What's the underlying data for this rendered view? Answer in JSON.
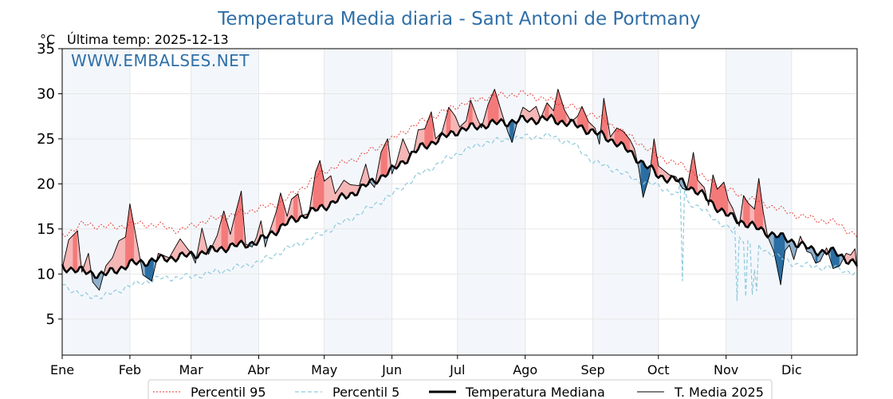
{
  "chart_data": {
    "type": "line",
    "title": "Temperatura Media diaria - Sant Antoni de Portmany",
    "unit_label": "°C",
    "last_temp_label": "Última temp: 2025-12-13",
    "watermark": "WWW.EMBALSES.NET",
    "x_range_days": [
      1,
      365
    ],
    "ylim": [
      1,
      35
    ],
    "yticks": [
      5,
      10,
      15,
      20,
      25,
      30,
      35
    ],
    "months": [
      "Ene",
      "Feb",
      "Mar",
      "Abr",
      "May",
      "Jun",
      "Jul",
      "Ago",
      "Sep",
      "Oct",
      "Nov",
      "Dic"
    ],
    "month_start_days": [
      1,
      32,
      60,
      91,
      121,
      152,
      182,
      213,
      244,
      274,
      305,
      335
    ],
    "shaded_months": [
      "Ene",
      "Mar",
      "May",
      "Jul",
      "Sep",
      "Nov"
    ],
    "grid": true,
    "legend_position": "bottom",
    "colors": {
      "above_strong": "#f47a7a",
      "above_light": "#f5b6b6",
      "below_strong": "#2a6ea3",
      "below_light": "#8fb0cc",
      "p95": "#e8312b",
      "p5": "#8fc9dc",
      "median": "#000000",
      "current": "#000000",
      "title": "#2f6fa8",
      "month_shade": "#f3f7fb",
      "grid": "#e6e6e6"
    },
    "series": [
      {
        "name": "Percentil 95",
        "key": "p95",
        "points": [
          [
            1,
            14.2
          ],
          [
            10,
            15.5
          ],
          [
            25,
            15.2
          ],
          [
            35,
            15.6
          ],
          [
            45,
            15.4
          ],
          [
            55,
            14.8
          ],
          [
            65,
            15.8
          ],
          [
            80,
            16.6
          ],
          [
            90,
            17.2
          ],
          [
            100,
            17.8
          ],
          [
            110,
            19.4
          ],
          [
            121,
            21.4
          ],
          [
            135,
            22.8
          ],
          [
            150,
            24.6
          ],
          [
            160,
            26.2
          ],
          [
            170,
            27.4
          ],
          [
            182,
            28.7
          ],
          [
            195,
            29.6
          ],
          [
            205,
            29.9
          ],
          [
            213,
            30.0
          ],
          [
            225,
            29.2
          ],
          [
            235,
            28.5
          ],
          [
            244,
            27.7
          ],
          [
            255,
            26.2
          ],
          [
            265,
            24.6
          ],
          [
            274,
            23.0
          ],
          [
            285,
            22.0
          ],
          [
            295,
            20.6
          ],
          [
            305,
            19.4
          ],
          [
            315,
            18.4
          ],
          [
            325,
            17.6
          ],
          [
            335,
            16.7
          ],
          [
            345,
            16.1
          ],
          [
            355,
            15.7
          ],
          [
            365,
            14.2
          ]
        ],
        "noise": 0.45
      },
      {
        "name": "Percentil 5",
        "key": "p5",
        "points": [
          [
            1,
            8.9
          ],
          [
            10,
            7.6
          ],
          [
            20,
            7.5
          ],
          [
            32,
            8.7
          ],
          [
            45,
            9.5
          ],
          [
            60,
            9.7
          ],
          [
            75,
            10.4
          ],
          [
            91,
            11.3
          ],
          [
            105,
            12.9
          ],
          [
            121,
            14.6
          ],
          [
            135,
            16.4
          ],
          [
            152,
            18.8
          ],
          [
            165,
            21.1
          ],
          [
            182,
            23.4
          ],
          [
            195,
            24.6
          ],
          [
            213,
            25.2
          ],
          [
            225,
            25.3
          ],
          [
            235,
            24.4
          ],
          [
            244,
            22.5
          ],
          [
            255,
            21.5
          ],
          [
            265,
            20.3
          ],
          [
            274,
            19.8
          ],
          [
            285,
            18.4
          ],
          [
            295,
            17.0
          ],
          [
            305,
            15.2
          ],
          [
            315,
            13.5
          ],
          [
            325,
            12.4
          ],
          [
            335,
            11.2
          ],
          [
            345,
            10.8
          ],
          [
            355,
            10.7
          ],
          [
            365,
            10.0
          ]
        ],
        "noise": 0.4
      },
      {
        "name": "Temperatura Mediana",
        "key": "median",
        "points": [
          [
            1,
            10.8
          ],
          [
            10,
            10.3
          ],
          [
            20,
            9.9
          ],
          [
            32,
            11.1
          ],
          [
            45,
            11.6
          ],
          [
            60,
            12.1
          ],
          [
            75,
            12.9
          ],
          [
            91,
            13.6
          ],
          [
            105,
            15.8
          ],
          [
            121,
            17.5
          ],
          [
            135,
            19.1
          ],
          [
            152,
            21.5
          ],
          [
            165,
            24.0
          ],
          [
            182,
            25.9
          ],
          [
            195,
            26.6
          ],
          [
            213,
            27.1
          ],
          [
            225,
            27.2
          ],
          [
            235,
            26.6
          ],
          [
            244,
            25.8
          ],
          [
            255,
            24.6
          ],
          [
            265,
            22.7
          ],
          [
            274,
            20.9
          ],
          [
            285,
            20.2
          ],
          [
            295,
            18.6
          ],
          [
            305,
            16.6
          ],
          [
            315,
            15.5
          ],
          [
            325,
            14.5
          ],
          [
            335,
            13.7
          ],
          [
            345,
            12.6
          ],
          [
            355,
            12.4
          ],
          [
            365,
            11.0
          ]
        ],
        "noise": 0.55
      },
      {
        "name": "T. Media 2025",
        "key": "current",
        "points": [
          [
            1,
            10.6
          ],
          [
            4,
            13.8
          ],
          [
            8,
            14.8
          ],
          [
            10,
            10.2
          ],
          [
            13,
            12.3
          ],
          [
            15,
            9.1
          ],
          [
            18,
            8.2
          ],
          [
            21,
            10.9
          ],
          [
            24,
            11.8
          ],
          [
            27,
            13.7
          ],
          [
            30,
            14.1
          ],
          [
            32,
            17.8
          ],
          [
            35,
            13.9
          ],
          [
            38,
            9.9
          ],
          [
            42,
            9.2
          ],
          [
            45,
            12.3
          ],
          [
            50,
            11.8
          ],
          [
            55,
            13.9
          ],
          [
            60,
            12.3
          ],
          [
            62,
            11.2
          ],
          [
            65,
            15.1
          ],
          [
            68,
            12.2
          ],
          [
            72,
            14.3
          ],
          [
            75,
            17.0
          ],
          [
            78,
            14.4
          ],
          [
            80,
            16.4
          ],
          [
            83,
            19.2
          ],
          [
            85,
            13.3
          ],
          [
            88,
            13.0
          ],
          [
            90,
            14.1
          ],
          [
            92,
            15.9
          ],
          [
            94,
            13.0
          ],
          [
            96,
            14.7
          ],
          [
            99,
            16.9
          ],
          [
            101,
            19.0
          ],
          [
            104,
            16.4
          ],
          [
            106,
            18.3
          ],
          [
            109,
            18.9
          ],
          [
            111,
            16.5
          ],
          [
            114,
            16.7
          ],
          [
            117,
            21.3
          ],
          [
            119,
            22.6
          ],
          [
            121,
            20.3
          ],
          [
            124,
            20.9
          ],
          [
            126,
            18.9
          ],
          [
            130,
            20.4
          ],
          [
            133,
            19.9
          ],
          [
            137,
            19.8
          ],
          [
            140,
            22.2
          ],
          [
            142,
            20.2
          ],
          [
            144,
            19.6
          ],
          [
            147,
            23.5
          ],
          [
            150,
            25.0
          ],
          [
            152,
            21.1
          ],
          [
            154,
            22.3
          ],
          [
            157,
            25.0
          ],
          [
            160,
            23.3
          ],
          [
            162,
            23.6
          ],
          [
            164,
            26.0
          ],
          [
            167,
            26.1
          ],
          [
            170,
            28.0
          ],
          [
            172,
            25.0
          ],
          [
            175,
            25.8
          ],
          [
            178,
            28.5
          ],
          [
            181,
            27.5
          ],
          [
            183,
            26.3
          ],
          [
            186,
            27.0
          ],
          [
            188,
            29.3
          ],
          [
            191,
            27.3
          ],
          [
            193,
            26.2
          ],
          [
            196,
            28.8
          ],
          [
            199,
            30.5
          ],
          [
            202,
            28.1
          ],
          [
            205,
            25.8
          ],
          [
            207,
            24.6
          ],
          [
            209,
            26.5
          ],
          [
            212,
            28.5
          ],
          [
            215,
            28.0
          ],
          [
            218,
            28.6
          ],
          [
            220,
            27.2
          ],
          [
            223,
            29.0
          ],
          [
            226,
            28.1
          ],
          [
            228,
            30.5
          ],
          [
            231,
            28.2
          ],
          [
            234,
            26.9
          ],
          [
            237,
            27.5
          ],
          [
            239,
            28.6
          ],
          [
            242,
            26.9
          ],
          [
            245,
            26.2
          ],
          [
            247,
            24.4
          ],
          [
            249,
            29.5
          ],
          [
            252,
            25.2
          ],
          [
            255,
            26.2
          ],
          [
            258,
            25.8
          ],
          [
            261,
            24.9
          ],
          [
            263,
            23.9
          ],
          [
            265,
            21.7
          ],
          [
            267,
            18.5
          ],
          [
            270,
            21.0
          ],
          [
            272,
            25.0
          ],
          [
            274,
            22.0
          ],
          [
            276,
            21.6
          ],
          [
            279,
            21.0
          ],
          [
            282,
            20.8
          ],
          [
            285,
            19.5
          ],
          [
            287,
            19.3
          ],
          [
            290,
            23.5
          ],
          [
            292,
            20.4
          ],
          [
            295,
            19.6
          ],
          [
            297,
            17.6
          ],
          [
            299,
            21.0
          ],
          [
            301,
            19.4
          ],
          [
            304,
            20.2
          ],
          [
            306,
            18.2
          ],
          [
            308,
            17.3
          ],
          [
            311,
            15.3
          ],
          [
            313,
            18.7
          ],
          [
            315,
            17.9
          ],
          [
            318,
            17.2
          ],
          [
            320,
            20.6
          ],
          [
            322,
            16.9
          ],
          [
            324,
            14.2
          ],
          [
            327,
            12.4
          ],
          [
            330,
            8.8
          ],
          [
            332,
            12.6
          ],
          [
            334,
            13.2
          ],
          [
            336,
            11.6
          ],
          [
            339,
            14.2
          ],
          [
            342,
            12.5
          ],
          [
            344,
            12.3
          ],
          [
            346,
            11.2
          ],
          [
            348,
            11.4
          ],
          [
            351,
            12.9
          ],
          [
            354,
            10.6
          ],
          [
            357,
            10.9
          ],
          [
            360,
            12.3
          ],
          [
            362,
            12.1
          ],
          [
            364,
            12.8
          ],
          [
            365,
            10.5
          ]
        ],
        "noise": 0
      }
    ],
    "p5_dips": [
      [
        287,
        [
          [
            284,
            20.1
          ],
          [
            285,
            9.2
          ],
          [
            286,
            19.9
          ]
        ]
      ],
      [
        311,
        [
          [
            309,
            15.2
          ],
          [
            310,
            7.0
          ],
          [
            314,
            7.5
          ],
          [
            317,
            7.7
          ],
          [
            318,
            10.5
          ],
          [
            319,
            8.1
          ],
          [
            320,
            13.3
          ]
        ]
      ]
    ]
  },
  "legend": {
    "items": [
      {
        "label": "Percentil 95",
        "key": "p95"
      },
      {
        "label": "Percentil 5",
        "key": "p5"
      },
      {
        "label": "Temperatura Mediana",
        "key": "median"
      },
      {
        "label": "T. Media 2025",
        "key": "current"
      }
    ]
  }
}
